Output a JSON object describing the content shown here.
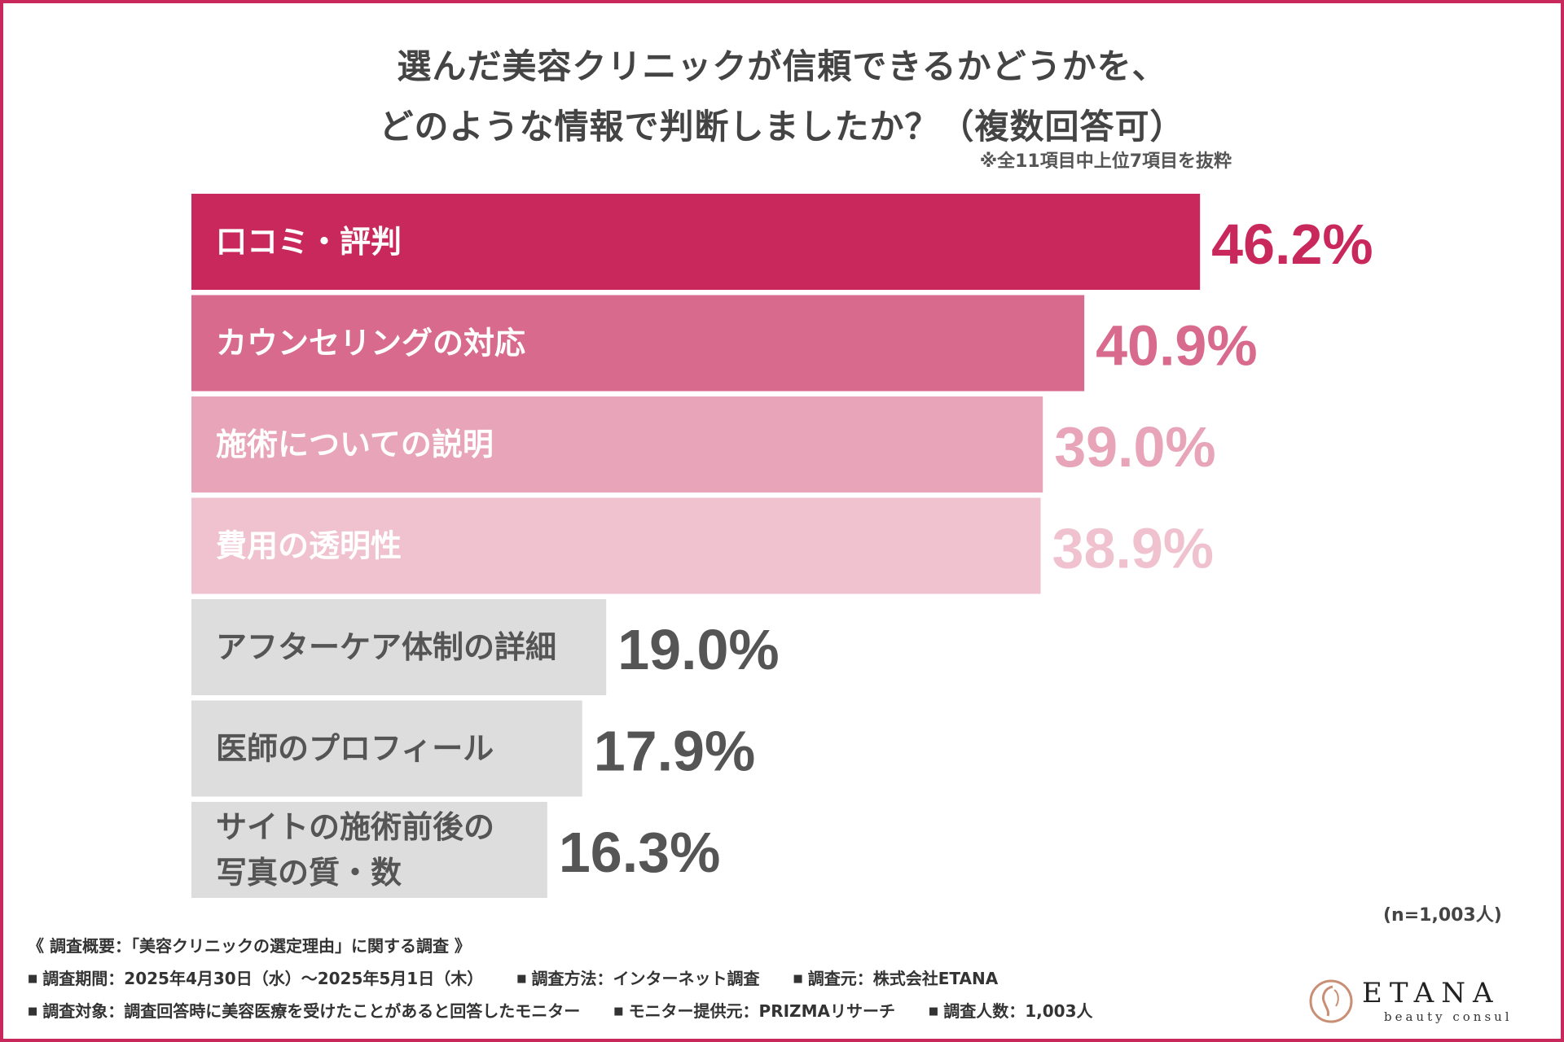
{
  "title": {
    "line1": "選んだ美容クリニックが信頼できるかどうかを、",
    "line2": "どのような情報で判断しましたか？（複数回答可）"
  },
  "note": "※全11項目中上位7項目を抜粋",
  "chart_data": {
    "type": "bar",
    "orientation": "horizontal",
    "title": "選んだ美容クリニックが信頼できるかどうかを、どのような情報で判断しましたか？（複数回答可）",
    "unit": "%",
    "xlim": [
      0,
      50
    ],
    "categories": [
      "口コミ・評判",
      "カウンセリングの対応",
      "施術についての説明",
      "費用の透明性",
      "アフターケア体制の詳細",
      "医師のプロフィール",
      "サイトの施術前後の写真の質・数"
    ],
    "category_lines": [
      [
        "口コミ・評判"
      ],
      [
        "カウンセリングの対応"
      ],
      [
        "施術についての説明"
      ],
      [
        "費用の透明性"
      ],
      [
        "アフターケア体制の詳細"
      ],
      [
        "医師のプロフィール"
      ],
      [
        "サイトの施術前後の",
        "写真の質・数"
      ]
    ],
    "values": [
      46.2,
      40.9,
      39.0,
      38.9,
      19.0,
      17.9,
      16.3
    ],
    "value_labels": [
      "46.2%",
      "40.9%",
      "39.0%",
      "38.9%",
      "19.0%",
      "17.9%",
      "16.3%"
    ],
    "bar_colors": [
      "#c8285c",
      "#d86a8e",
      "#e8a4b8",
      "#f0c2d0",
      "#dddddd",
      "#dddddd",
      "#dddddd"
    ],
    "label_colors": [
      "#ffffff",
      "#ffffff",
      "#ffffff",
      "#ffffff",
      "#555555",
      "#555555",
      "#555555"
    ],
    "value_colors": [
      "#c8285c",
      "#d86a8e",
      "#e8a4b8",
      "#f0c2d0",
      "#555555",
      "#555555",
      "#555555"
    ],
    "sample_size": "(n=1,003人)"
  },
  "footer": {
    "heading": "《 調査概要：「美容クリニックの選定理由」に関する調査 》",
    "row1": [
      "調査期間：2025年4月30日（水）～2025年5月1日（木）",
      "調査方法：インターネット調査",
      "調査元：株式会社ETANA"
    ],
    "row2": [
      "調査対象：調査回答時に美容医療を受けたことがあると回答したモニター",
      "モニター提供元：PRIZMAリサーチ",
      "調査人数：1,003人"
    ]
  },
  "logo": {
    "word": "ETANA",
    "sub": "beauty consul"
  },
  "colors": {
    "accent": "#c8285c",
    "text": "#444444"
  }
}
